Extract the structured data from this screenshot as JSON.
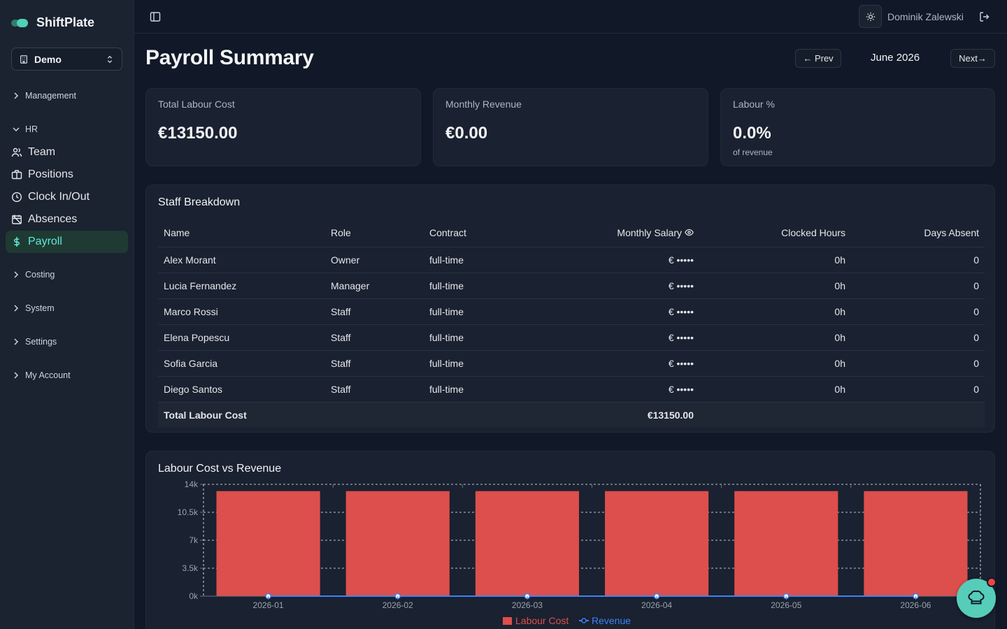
{
  "brand": {
    "name": "ShiftPlate"
  },
  "org": {
    "selected": "Demo"
  },
  "sidebar": {
    "groups": [
      {
        "label": "Management"
      },
      {
        "label": "HR"
      },
      {
        "label": "Costing"
      },
      {
        "label": "System"
      },
      {
        "label": "Settings"
      },
      {
        "label": "My Account"
      }
    ],
    "hr_items": [
      {
        "label": "Team",
        "icon": "users-icon"
      },
      {
        "label": "Positions",
        "icon": "briefcase-icon"
      },
      {
        "label": "Clock In/Out",
        "icon": "clock-icon"
      },
      {
        "label": "Absences",
        "icon": "calendar-off-icon"
      },
      {
        "label": "Payroll",
        "icon": "dollar-icon"
      }
    ]
  },
  "topbar": {
    "user": "Dominik Zalewski"
  },
  "header": {
    "title": "Payroll Summary",
    "prev": "← Prev",
    "month": "June 2026",
    "next": "Next→"
  },
  "cards": [
    {
      "title": "Total Labour Cost",
      "value": "€13150.00",
      "sub": ""
    },
    {
      "title": "Monthly Revenue",
      "value": "€0.00",
      "sub": ""
    },
    {
      "title": "Labour %",
      "value": "0.0%",
      "sub": "of revenue"
    }
  ],
  "staff": {
    "title": "Staff Breakdown",
    "columns": [
      "Name",
      "Role",
      "Contract",
      "Monthly Salary",
      "Clocked Hours",
      "Days Absent"
    ],
    "rows": [
      {
        "name": "Alex Morant",
        "role": "Owner",
        "contract": "full-time",
        "salary": "€ •••••",
        "hours": "0h",
        "absent": "0"
      },
      {
        "name": "Lucia Fernandez",
        "role": "Manager",
        "contract": "full-time",
        "salary": "€ •••••",
        "hours": "0h",
        "absent": "0"
      },
      {
        "name": "Marco Rossi",
        "role": "Staff",
        "contract": "full-time",
        "salary": "€ •••••",
        "hours": "0h",
        "absent": "0"
      },
      {
        "name": "Elena Popescu",
        "role": "Staff",
        "contract": "full-time",
        "salary": "€ •••••",
        "hours": "0h",
        "absent": "0"
      },
      {
        "name": "Sofia Garcia",
        "role": "Staff",
        "contract": "full-time",
        "salary": "€ •••••",
        "hours": "0h",
        "absent": "0"
      },
      {
        "name": "Diego Santos",
        "role": "Staff",
        "contract": "full-time",
        "salary": "€ •••••",
        "hours": "0h",
        "absent": "0"
      }
    ],
    "total_label": "Total Labour Cost",
    "total_value": "€13150.00"
  },
  "chart_panel": {
    "title": "Labour Cost vs Revenue"
  },
  "chart_data": {
    "type": "bar",
    "title": "Labour Cost vs Revenue",
    "categories": [
      "2026-01",
      "2026-02",
      "2026-03",
      "2026-04",
      "2026-05",
      "2026-06"
    ],
    "series": [
      {
        "name": "Labour Cost",
        "type": "bar",
        "color": "#dc4f4c",
        "values": [
          13150,
          13150,
          13150,
          13150,
          13150,
          13150
        ]
      },
      {
        "name": "Revenue",
        "type": "line",
        "color": "#3b82f6",
        "values": [
          0,
          0,
          0,
          0,
          0,
          0
        ]
      }
    ],
    "ylim": [
      0,
      14000
    ],
    "yticks": [
      "0k",
      "3.5k",
      "7k",
      "10.5k",
      "14k"
    ],
    "grid": true,
    "legend": "bottom"
  }
}
